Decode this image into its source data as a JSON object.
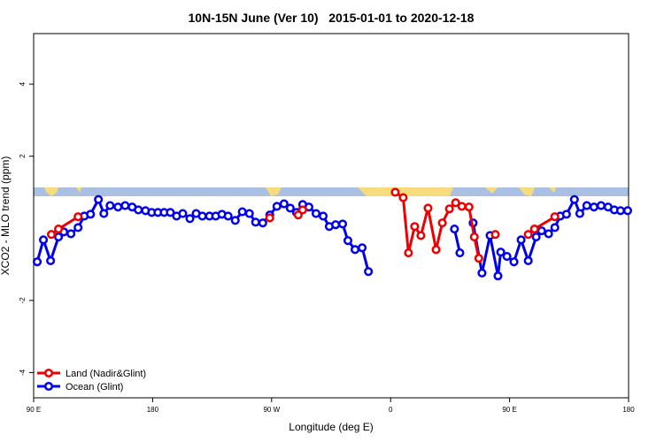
{
  "chart_data": {
    "type": "line",
    "title": "10N-15N June (Ver 10)   2015-01-01 to 2020-12-18",
    "x_label": "Longitude (deg E)",
    "y_label": "XCO2 - MLO trend (ppm)",
    "xlim": [
      90,
      540
    ],
    "xticks": [
      {
        "value": 90,
        "label": "90 E"
      },
      180,
      {
        "value": 270,
        "label": "90 W"
      },
      {
        "value": 360,
        "label": "0"
      },
      {
        "value": 450,
        "label": "90 E"
      },
      {
        "value": 540,
        "label": "180"
      }
    ],
    "ylim": [
      -4.7,
      5.4
    ],
    "yticks": [
      -4,
      -2,
      2,
      4
    ],
    "legend": "bottom-left",
    "series": [
      {
        "name": "Ocean (Glint)",
        "color": "#0000ee",
        "x": [
          92.7,
          97.4,
          102.8,
          108.8,
          112.8,
          118.2,
          123.6,
          128.3,
          133,
          139,
          143.1,
          147.8,
          153.8,
          159.2,
          164.5,
          169.2,
          174.6,
          179.3,
          184,
          188.7,
          193.4,
          198.1,
          202.8,
          208.2,
          212.9,
          217.6,
          223,
          227.7,
          232.4,
          237.1,
          242.5,
          247.8,
          253.2,
          257.9,
          263.3,
          268.6,
          274,
          279.4,
          284.1,
          288.8,
          293.5,
          298.2,
          303.6,
          309,
          313.6,
          318.4,
          323.7,
          327.7,
          333.1,
          338.5,
          343.2,
          null,
          408.3,
          412.4,
          null,
          422.4,
          429.1,
          435.2,
          441.2,
          443.3,
          448,
          453.3,
          458.7,
          464.1,
          470.1,
          474.2,
          479.5,
          484.2,
          488.3,
          493,
          499,
          503.1,
          508.4,
          513.8,
          519.2,
          524.5,
          529.2,
          533.9,
          539.3
        ],
        "values": [
          -0.93,
          -0.32,
          -0.9,
          -0.24,
          -0.1,
          -0.15,
          0.02,
          0.34,
          0.39,
          0.8,
          0.41,
          0.63,
          0.59,
          0.63,
          0.59,
          0.51,
          0.49,
          0.44,
          0.44,
          0.44,
          0.44,
          0.34,
          0.41,
          0.27,
          0.41,
          0.34,
          0.34,
          0.34,
          0.39,
          0.34,
          0.22,
          0.46,
          0.41,
          0.17,
          0.15,
          0.37,
          0.61,
          0.68,
          0.56,
          0.44,
          0.66,
          0.59,
          0.41,
          0.34,
          0.05,
          0.1,
          0.12,
          -0.34,
          -0.59,
          -0.54,
          -1.2,
          null,
          -0.02,
          -0.68,
          null,
          0.15,
          -1.24,
          -0.2,
          -1.32,
          -0.66,
          -0.78,
          -0.93,
          -0.32,
          -0.9,
          -0.24,
          -0.07,
          -0.15,
          0.02,
          0.34,
          0.39,
          0.8,
          0.41,
          0.63,
          0.59,
          0.63,
          0.59,
          0.51,
          0.49,
          0.49
        ]
      },
      {
        "name": "Land (Nadir&Glint)",
        "color": "#ee0000",
        "x": [
          103.4,
          108.8,
          123.6,
          null,
          268.6,
          null,
          290.1,
          293.5,
          null,
          363.5,
          369.5,
          373.5,
          378.2,
          382.9,
          388.3,
          394.4,
          399.1,
          404.5,
          409.2,
          413.9,
          419.3,
          423.3,
          426.7,
          null,
          439.2,
          null,
          464.1,
          468.8,
          484.2
        ],
        "values": [
          -0.17,
          -0.02,
          0.32,
          null,
          0.29,
          null,
          0.37,
          0.51,
          null,
          1.0,
          0.85,
          -0.68,
          0.05,
          -0.2,
          0.56,
          -0.59,
          0.15,
          0.54,
          0.71,
          0.61,
          0.59,
          -0.24,
          -0.83,
          null,
          -0.17,
          null,
          -0.17,
          -0.02,
          0.32
        ]
      }
    ]
  }
}
